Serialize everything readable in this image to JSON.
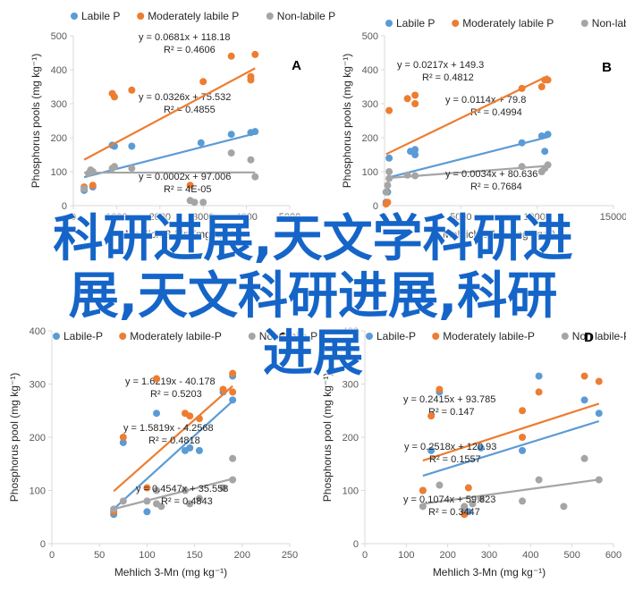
{
  "colors": {
    "labile": "#5b9bd5",
    "moderately_labile": "#ed7d31",
    "non_labile": "#a5a5a5",
    "axis": "#d9d9d9",
    "text": "#595959"
  },
  "chart_data": [
    {
      "type": "scatter",
      "panel": "A",
      "xlabel": "Mehlich 3-Mn (mg kg⁻¹)",
      "ylabel": "Phosphorus pools (mg kg⁻¹)",
      "xlim": [
        0,
        5000
      ],
      "ylim": [
        0,
        500
      ],
      "xticks": [
        "0",
        "1000",
        "2000",
        "3000",
        "4000",
        "5000"
      ],
      "yticks": [
        "0",
        "100",
        "200",
        "300",
        "400",
        "500"
      ],
      "legend_position": "top",
      "series": [
        {
          "name": "Labile P",
          "color": "#5b9bd5",
          "trendline": [
            0.0326,
            75.532
          ],
          "equation": "y = 0.0326x + 75.532",
          "r2": "R² = 0.4855",
          "points": [
            [
              250,
              45
            ],
            [
              450,
              55
            ],
            [
              900,
              178
            ],
            [
              950,
              175
            ],
            [
              1350,
              175
            ],
            [
              2950,
              185
            ],
            [
              3650,
              210
            ],
            [
              4100,
              215
            ],
            [
              4200,
              218
            ]
          ]
        },
        {
          "name": "Moderately labile P",
          "color": "#ed7d31",
          "trendline": [
            0.0681,
            118.18
          ],
          "equation": "y = 0.0681x + 118.18",
          "r2": "R² = 0.4606",
          "points": [
            [
              250,
              55
            ],
            [
              450,
              60
            ],
            [
              900,
              330
            ],
            [
              950,
              320
            ],
            [
              1350,
              340
            ],
            [
              2700,
              60
            ],
            [
              3000,
              365
            ],
            [
              3650,
              440
            ],
            [
              4100,
              370
            ],
            [
              4100,
              380
            ],
            [
              4200,
              445
            ]
          ]
        },
        {
          "name": "Non-labile P",
          "color": "#a5a5a5",
          "trendline": [
            0.0002,
            97.006
          ],
          "equation": "y = 0.0002x + 97.006",
          "r2": "R² = 4E-05",
          "points": [
            [
              250,
              50
            ],
            [
              350,
              95
            ],
            [
              400,
              105
            ],
            [
              450,
              100
            ],
            [
              900,
              110
            ],
            [
              950,
              115
            ],
            [
              1350,
              110
            ],
            [
              2700,
              15
            ],
            [
              2800,
              10
            ],
            [
              3000,
              10
            ],
            [
              3650,
              155
            ],
            [
              4100,
              135
            ],
            [
              4200,
              85
            ]
          ]
        }
      ]
    },
    {
      "type": "scatter",
      "panel": "B",
      "xlabel": "Mehlich 3-Mn (mg kg⁻¹)",
      "ylabel": "Phosphorus pools (mg kg⁻¹)",
      "xlim": [
        0,
        15000
      ],
      "ylim": [
        0,
        500
      ],
      "xticks": [
        "0",
        "5000",
        "10000",
        "15000"
      ],
      "yticks": [
        "0",
        "100",
        "200",
        "300",
        "400",
        "500"
      ],
      "legend_position": "top",
      "series": [
        {
          "name": "Labile P",
          "color": "#5b9bd5",
          "trendline": [
            0.0114,
            79.8
          ],
          "equation": "y = 0.0114x + 79.8",
          "r2": "R² = 0.4994",
          "points": [
            [
              100,
              10
            ],
            [
              200,
              40
            ],
            [
              300,
              140
            ],
            [
              1700,
              160
            ],
            [
              2000,
              165
            ],
            [
              2000,
              150
            ],
            [
              9000,
              185
            ],
            [
              10300,
              205
            ],
            [
              10500,
              160
            ],
            [
              10700,
              210
            ]
          ]
        },
        {
          "name": "Moderately labile P",
          "color": "#ed7d31",
          "trendline": [
            0.0217,
            149.3
          ],
          "equation": "y = 0.0217x + 149.3",
          "r2": "R² = 0.4812",
          "points": [
            [
              100,
              5
            ],
            [
              200,
              10
            ],
            [
              300,
              280
            ],
            [
              1500,
              315
            ],
            [
              2000,
              325
            ],
            [
              2000,
              300
            ],
            [
              9000,
              345
            ],
            [
              10300,
              350
            ],
            [
              10500,
              370
            ],
            [
              10700,
              370
            ]
          ]
        },
        {
          "name": "Non-labile P",
          "color": "#a5a5a5",
          "trendline": [
            0.0034,
            80.636
          ],
          "equation": "y = 0.0034x + 80.636",
          "r2": "R² = 0.7684",
          "points": [
            [
              100,
              40
            ],
            [
              200,
              60
            ],
            [
              300,
              80
            ],
            [
              300,
              100
            ],
            [
              1500,
              90
            ],
            [
              2000,
              88
            ],
            [
              9000,
              115
            ],
            [
              10300,
              100
            ],
            [
              10500,
              110
            ],
            [
              10700,
              120
            ]
          ]
        }
      ]
    },
    {
      "type": "scatter",
      "panel": "C",
      "xlabel": "Mehlich 3-Mn (mg kg⁻¹)",
      "ylabel": "Phosphorus pool (mg kg⁻¹)",
      "xlim": [
        0,
        250
      ],
      "ylim": [
        0,
        400
      ],
      "xticks": [
        "0",
        "50",
        "100",
        "150",
        "200",
        "250"
      ],
      "yticks": [
        "0",
        "100",
        "200",
        "300",
        "400"
      ],
      "legend_position": "top",
      "series": [
        {
          "name": "Labile-P",
          "color": "#5b9bd5",
          "trendline": [
            1.6219,
            -40.178
          ],
          "equation": "y = 1.6219x - 40.178",
          "r2": "R² = 0.5203",
          "points": [
            [
              65,
              55
            ],
            [
              75,
              190
            ],
            [
              100,
              60
            ],
            [
              110,
              245
            ],
            [
              140,
              175
            ],
            [
              145,
              180
            ],
            [
              155,
              175
            ],
            [
              180,
              285
            ],
            [
              190,
              270
            ],
            [
              190,
              315
            ]
          ]
        },
        {
          "name": "Moderately labile-P",
          "color": "#ed7d31",
          "trendline": [
            1.5819,
            -4.2568
          ],
          "equation": "y = 1.5819x - 4.2568",
          "r2": "R² = 0.4818",
          "points": [
            [
              65,
              60
            ],
            [
              75,
              200
            ],
            [
              100,
              105
            ],
            [
              110,
              310
            ],
            [
              140,
              245
            ],
            [
              145,
              240
            ],
            [
              155,
              235
            ],
            [
              180,
              290
            ],
            [
              190,
              285
            ],
            [
              190,
              320
            ]
          ]
        },
        {
          "name": "Non labile-P",
          "color": "#a5a5a5",
          "trendline": [
            0.4547,
            35.558
          ],
          "equation": "y = 0.4547x + 35.558",
          "r2": "R² = 0.4843",
          "points": [
            [
              65,
              65
            ],
            [
              75,
              80
            ],
            [
              100,
              80
            ],
            [
              110,
              75
            ],
            [
              110,
              100
            ],
            [
              115,
              70
            ],
            [
              140,
              100
            ],
            [
              145,
              75
            ],
            [
              155,
              85
            ],
            [
              180,
              105
            ],
            [
              190,
              160
            ],
            [
              190,
              120
            ]
          ]
        }
      ]
    },
    {
      "type": "scatter",
      "panel": "D",
      "xlabel": "Mehlich 3-Mn (mg kg⁻¹)",
      "ylabel": "Phosphorus pool (mg kg⁻¹)",
      "xlim": [
        0,
        600
      ],
      "ylim": [
        0,
        400
      ],
      "xticks": [
        "0",
        "100",
        "200",
        "300",
        "400",
        "500",
        "600"
      ],
      "yticks": [
        "0",
        "100",
        "200",
        "300",
        "400"
      ],
      "legend_position": "top",
      "series": [
        {
          "name": "Labile-P",
          "color": "#5b9bd5",
          "trendline": [
            0.2415,
            93.785
          ],
          "equation": "y = 0.2415x + 93.785",
          "r2": "R² = 0.147",
          "points": [
            [
              140,
              100
            ],
            [
              160,
              175
            ],
            [
              180,
              285
            ],
            [
              240,
              60
            ],
            [
              250,
              60
            ],
            [
              280,
              180
            ],
            [
              380,
              175
            ],
            [
              420,
              315
            ],
            [
              530,
              270
            ],
            [
              565,
              245
            ]
          ]
        },
        {
          "name": "Moderately labile-P",
          "color": "#ed7d31",
          "trendline": [
            0.2518,
            120.93
          ],
          "equation": "y = 0.2518x + 120.93",
          "r2": "R² = 0.1557",
          "points": [
            [
              140,
              100
            ],
            [
              160,
              240
            ],
            [
              180,
              290
            ],
            [
              240,
              55
            ],
            [
              250,
              105
            ],
            [
              380,
              200
            ],
            [
              380,
              250
            ],
            [
              420,
              285
            ],
            [
              530,
              315
            ],
            [
              565,
              305
            ]
          ]
        },
        {
          "name": "Non labile-P",
          "color": "#a5a5a5",
          "trendline": [
            0.1074,
            59.823
          ],
          "equation": "y = 0.1074x + 59.823",
          "r2": "R² = 0.3447",
          "points": [
            [
              140,
              70
            ],
            [
              180,
              110
            ],
            [
              240,
              70
            ],
            [
              260,
              75
            ],
            [
              280,
              85
            ],
            [
              380,
              80
            ],
            [
              420,
              120
            ],
            [
              480,
              70
            ],
            [
              530,
              160
            ],
            [
              565,
              120
            ]
          ]
        }
      ]
    }
  ],
  "watermark": {
    "lines": [
      "科研进展,天文学科研进",
      "展,天文科研进展,科研",
      "进展"
    ]
  }
}
